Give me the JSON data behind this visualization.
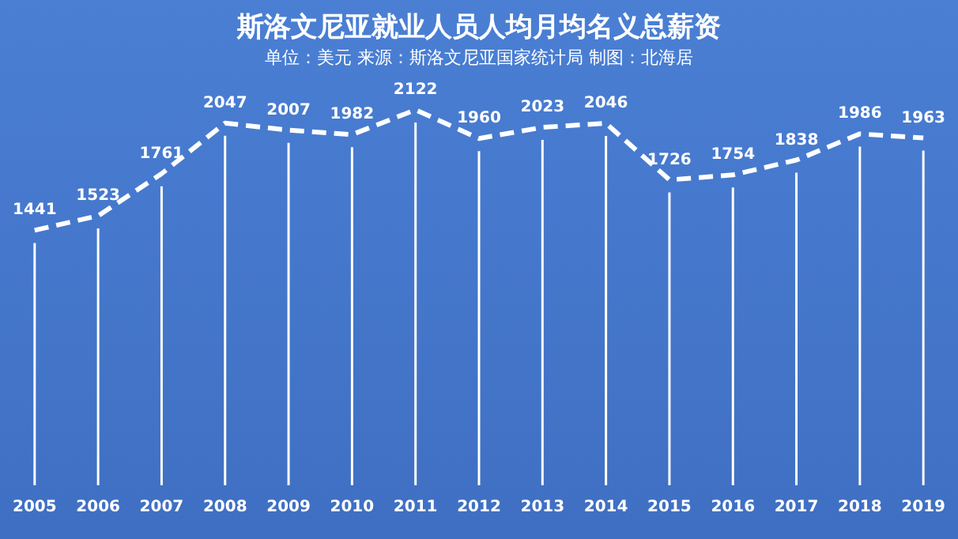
{
  "chart_data": {
    "type": "line",
    "title": "斯洛文尼亚就业人员人均月均名义总薪资",
    "subtitle": "单位：美元 来源：斯洛文尼亚国家统计局 制图：北海居",
    "categories": [
      "2005",
      "2006",
      "2007",
      "2008",
      "2009",
      "2010",
      "2011",
      "2012",
      "2013",
      "2014",
      "2015",
      "2016",
      "2017",
      "2018",
      "2019"
    ],
    "series": [
      {
        "color": "#ffffff",
        "values": [
          1441,
          1523,
          1761,
          2047,
          2007,
          1982,
          2122,
          1960,
          2023,
          2046,
          1726,
          1754,
          1838,
          1986,
          1963
        ]
      }
    ],
    "data_labels": true,
    "line_style": "dashed",
    "marker": "none",
    "grid": "x",
    "legend": false,
    "tick_labels": "x"
  }
}
